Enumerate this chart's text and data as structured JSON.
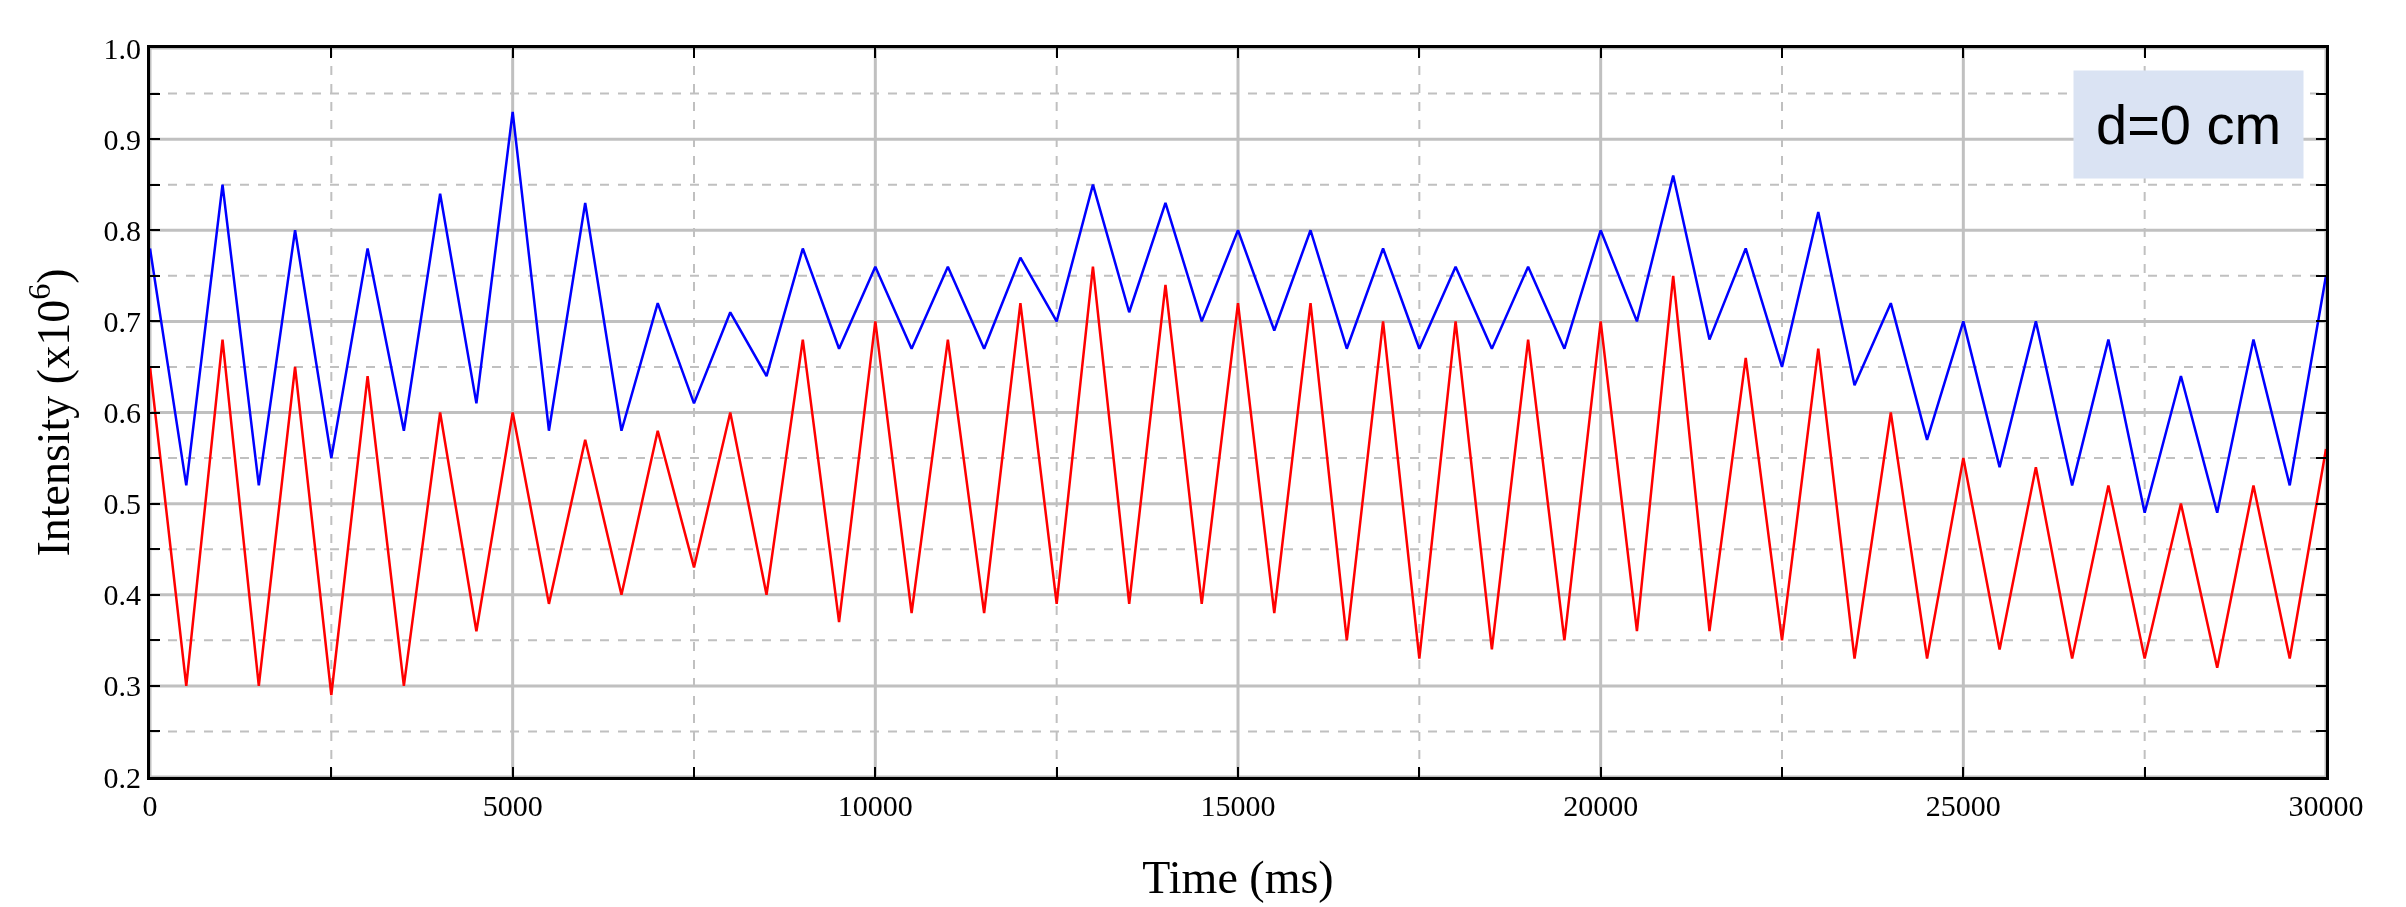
{
  "chart_data": {
    "type": "line",
    "xlabel": "Time (ms)",
    "ylabel": "Intensity (x10$^{6}$)",
    "annotations": [
      "d=0 cm"
    ],
    "x": [
      0,
      500,
      1000,
      1500,
      2000,
      2500,
      3000,
      3500,
      4000,
      4500,
      5000,
      5500,
      6000,
      6500,
      7000,
      7500,
      8000,
      8500,
      9000,
      9500,
      10000,
      10500,
      11000,
      11500,
      12000,
      12500,
      13000,
      13500,
      14000,
      14500,
      15000,
      15500,
      16000,
      16500,
      17000,
      17500,
      18000,
      18500,
      19000,
      19500,
      20000,
      20500,
      21000,
      21500,
      22000,
      22500,
      23000,
      23500,
      24000,
      24500,
      25000,
      25500,
      26000,
      26500,
      27000,
      27500,
      28000,
      28500,
      29000,
      29500,
      30000
    ],
    "series": [
      {
        "color": "#0000ff",
        "values": [
          0.78,
          0.52,
          0.85,
          0.52,
          0.8,
          0.55,
          0.78,
          0.58,
          0.84,
          0.61,
          0.93,
          0.58,
          0.83,
          0.58,
          0.72,
          0.61,
          0.71,
          0.64,
          0.78,
          0.67,
          0.76,
          0.67,
          0.76,
          0.67,
          0.77,
          0.7,
          0.85,
          0.71,
          0.83,
          0.7,
          0.8,
          0.69,
          0.8,
          0.67,
          0.78,
          0.67,
          0.76,
          0.67,
          0.76,
          0.67,
          0.8,
          0.7,
          0.86,
          0.68,
          0.78,
          0.65,
          0.82,
          0.63,
          0.72,
          0.57,
          0.7,
          0.54,
          0.7,
          0.52,
          0.68,
          0.49,
          0.64,
          0.49,
          0.68,
          0.52,
          0.75
        ]
      },
      {
        "color": "#ff0000",
        "values": [
          0.65,
          0.3,
          0.68,
          0.3,
          0.65,
          0.29,
          0.64,
          0.3,
          0.6,
          0.36,
          0.6,
          0.39,
          0.57,
          0.4,
          0.58,
          0.43,
          0.6,
          0.4,
          0.68,
          0.37,
          0.7,
          0.38,
          0.68,
          0.38,
          0.72,
          0.39,
          0.76,
          0.39,
          0.74,
          0.39,
          0.72,
          0.38,
          0.72,
          0.35,
          0.7,
          0.33,
          0.7,
          0.34,
          0.68,
          0.35,
          0.7,
          0.36,
          0.75,
          0.36,
          0.66,
          0.35,
          0.67,
          0.33,
          0.6,
          0.33,
          0.55,
          0.34,
          0.54,
          0.33,
          0.52,
          0.33,
          0.5,
          0.32,
          0.52,
          0.33,
          0.56
        ]
      }
    ],
    "xlim": [
      0,
      30000
    ],
    "xticks": [
      0,
      {
        "value": 2500,
        "label": null
      },
      5000,
      {
        "value": 7500,
        "label": null
      },
      10000,
      {
        "value": 12500,
        "label": null
      },
      15000,
      {
        "value": 17500,
        "label": null
      },
      20000,
      {
        "value": 22500,
        "label": null
      },
      25000,
      {
        "value": 27500,
        "label": null
      },
      30000
    ],
    "ylim": [
      0.2,
      1.0
    ],
    "yticks": [
      {
        "value": 0.2,
        "label": "0.2"
      },
      {
        "value": 0.25,
        "label": null
      },
      {
        "value": 0.3,
        "label": "0.3"
      },
      {
        "value": 0.35,
        "label": null
      },
      {
        "value": 0.4,
        "label": "0.4"
      },
      {
        "value": 0.45,
        "label": null
      },
      {
        "value": 0.5,
        "label": "0.5"
      },
      {
        "value": 0.55,
        "label": null
      },
      {
        "value": 0.6,
        "label": "0.6"
      },
      {
        "value": 0.65,
        "label": null
      },
      {
        "value": 0.7,
        "label": "0.7"
      },
      {
        "value": 0.75,
        "label": null
      },
      {
        "value": 0.8,
        "label": "0.8"
      },
      {
        "value": 0.85,
        "label": null
      },
      {
        "value": 0.9,
        "label": "0.9"
      },
      {
        "value": 0.95,
        "label": null
      },
      {
        "value": 1.0,
        "label": "1.0"
      }
    ],
    "grid": true,
    "marker": "none",
    "line_style": "solid"
  }
}
